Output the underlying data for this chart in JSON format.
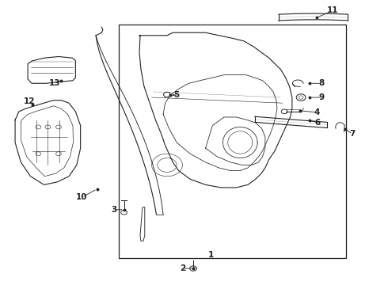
{
  "bg_color": "#ffffff",
  "line_color": "#222222",
  "lw": 0.8
}
